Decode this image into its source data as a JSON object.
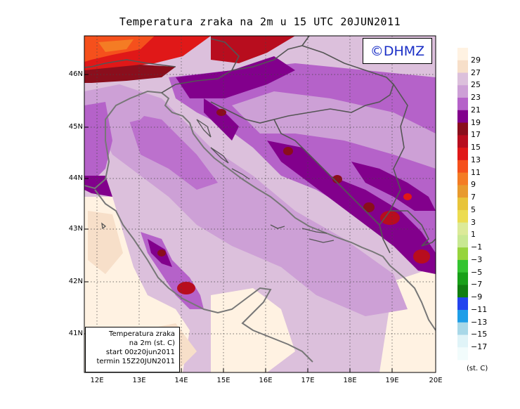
{
  "title": "Temperatura zraka na 2m u 15 UTC 20JUN2011",
  "copyright": "©DHMZ",
  "info": {
    "line1": "Temperatura zraka",
    "line2": "na 2m (st. C)",
    "line3": "start 00z20jun2011",
    "line4": "termin 15Z20JUN2011"
  },
  "legend": {
    "unit": "(st. C)",
    "labels": [
      "29",
      "27",
      "25",
      "23",
      "21",
      "19",
      "17",
      "15",
      "13",
      "11",
      "9",
      "7",
      "5",
      "3",
      "1",
      "−1",
      "−3",
      "−5",
      "−7",
      "−9",
      "−11",
      "−13",
      "−15",
      "−17"
    ],
    "colors": [
      "#fff2e2",
      "#f7dfc9",
      "#dcc0dc",
      "#cda0d6",
      "#b562c9",
      "#82008c",
      "#8a0e1c",
      "#b80d1e",
      "#e01818",
      "#f5501c",
      "#f47c24",
      "#e89a2e",
      "#e8c43a",
      "#ecdc50",
      "#dcea98",
      "#c8e892",
      "#96d43c",
      "#34c430",
      "#18a018",
      "#107e10",
      "#2244ee",
      "#1e9ee8",
      "#a8d8e8",
      "#e0f4f8",
      "#f2fcfc"
    ]
  },
  "axes": {
    "lat_labels": [
      "46N",
      "45N",
      "44N",
      "43N",
      "42N",
      "41N"
    ],
    "lon_labels": [
      "12E",
      "13E",
      "14E",
      "15E",
      "16E",
      "17E",
      "18E",
      "19E",
      "20E"
    ]
  }
}
